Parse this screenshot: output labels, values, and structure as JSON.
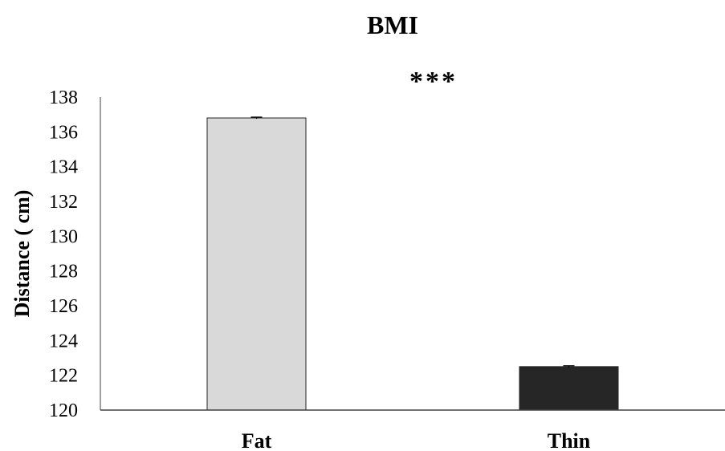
{
  "chart_data": {
    "type": "bar",
    "title": "BMI",
    "annotation": "***",
    "ylabel": "Distance ( cm)",
    "xlabel": "",
    "categories": [
      "Fat",
      "Thin"
    ],
    "values": [
      136.8,
      122.5
    ],
    "errors": [
      0.05,
      0.05
    ],
    "bar_colors": [
      "#d9d9d9",
      "#262626"
    ],
    "ylim": [
      120,
      138
    ],
    "yticks": [
      120,
      122,
      124,
      126,
      128,
      130,
      132,
      134,
      136,
      138
    ],
    "grid": false
  }
}
